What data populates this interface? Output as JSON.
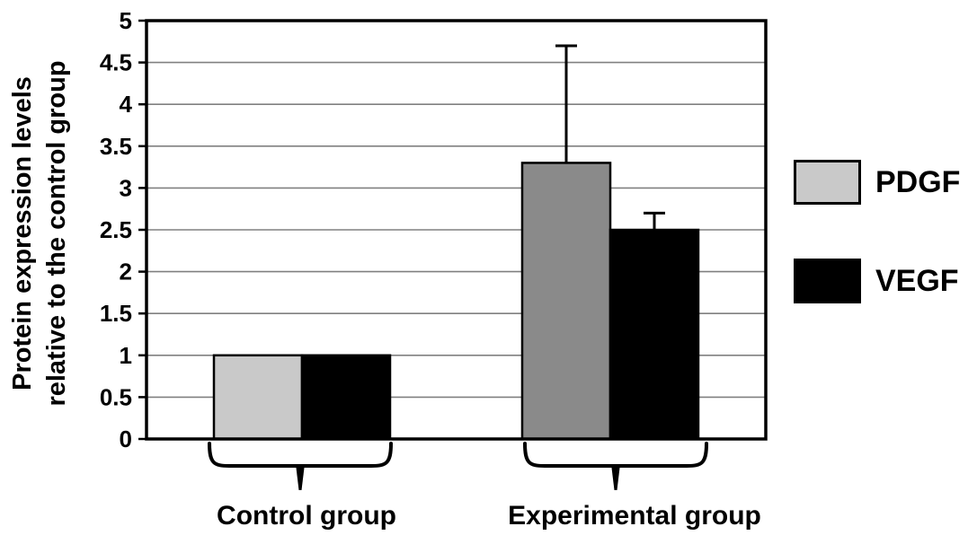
{
  "chart_data": {
    "type": "bar",
    "title": "",
    "ylabel_lines": [
      "Protein expression levels",
      "relative to the control group"
    ],
    "ylim": [
      0,
      5
    ],
    "yticks": [
      0,
      0.5,
      1,
      1.5,
      2,
      2.5,
      3,
      3.5,
      4,
      4.5,
      5
    ],
    "ytick_labels": [
      "0",
      "0.5",
      "1",
      "1.5",
      "2",
      "2.5",
      "3",
      "3.5",
      "4",
      "4.5",
      "5"
    ],
    "grid": "horizontal",
    "legend_position": "right",
    "categories": [
      "Control group",
      "Experimental group"
    ],
    "series": [
      {
        "name": "PDGF",
        "values": [
          1,
          3.3
        ],
        "errors_plus": [
          0,
          1.4
        ],
        "bar_colors": [
          "#c9c9c9",
          "#8a8a8a"
        ],
        "legend_color": "#c9c9c9"
      },
      {
        "name": "VEGF",
        "values": [
          1,
          2.5
        ],
        "errors_plus": [
          0,
          0.2
        ],
        "bar_colors": [
          "#000000",
          "#000000"
        ],
        "legend_color": "#000000"
      }
    ],
    "colors": {
      "grid": "#808080",
      "frame": "#000000",
      "bar_outline": "#000000",
      "background": "#ffffff",
      "text": "#000000"
    }
  }
}
